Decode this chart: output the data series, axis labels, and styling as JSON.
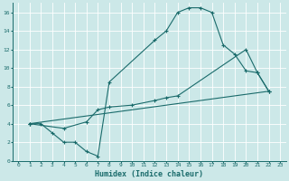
{
  "xlabel": "Humidex (Indice chaleur)",
  "bg_color": "#cce8e8",
  "grid_color": "#ffffff",
  "line_color": "#1a6b6b",
  "xlim": [
    -0.5,
    23.5
  ],
  "ylim": [
    0,
    17
  ],
  "xticks": [
    0,
    1,
    2,
    3,
    4,
    5,
    6,
    7,
    8,
    9,
    10,
    11,
    12,
    13,
    14,
    15,
    16,
    17,
    18,
    19,
    20,
    21,
    22,
    23
  ],
  "yticks": [
    0,
    2,
    4,
    6,
    8,
    10,
    12,
    14,
    16
  ],
  "line1_x": [
    1,
    2,
    3,
    4,
    5,
    6,
    7,
    8,
    12,
    13,
    14,
    15,
    16,
    17,
    18,
    19,
    20,
    21,
    22
  ],
  "line1_y": [
    4,
    4,
    3,
    2,
    2,
    1,
    0.5,
    8.5,
    13,
    14,
    16,
    16.5,
    16.5,
    16,
    12.5,
    11.5,
    9.7,
    9.5,
    7.5
  ],
  "line2_x": [
    1,
    22
  ],
  "line2_y": [
    4,
    7.5
  ],
  "line3_x": [
    1,
    4,
    6,
    7,
    8,
    10,
    12,
    13,
    14,
    20,
    21,
    22
  ],
  "line3_y": [
    4,
    3.5,
    4.2,
    5.5,
    5.8,
    6.0,
    6.5,
    6.8,
    7.0,
    12,
    9.5,
    7.5
  ]
}
